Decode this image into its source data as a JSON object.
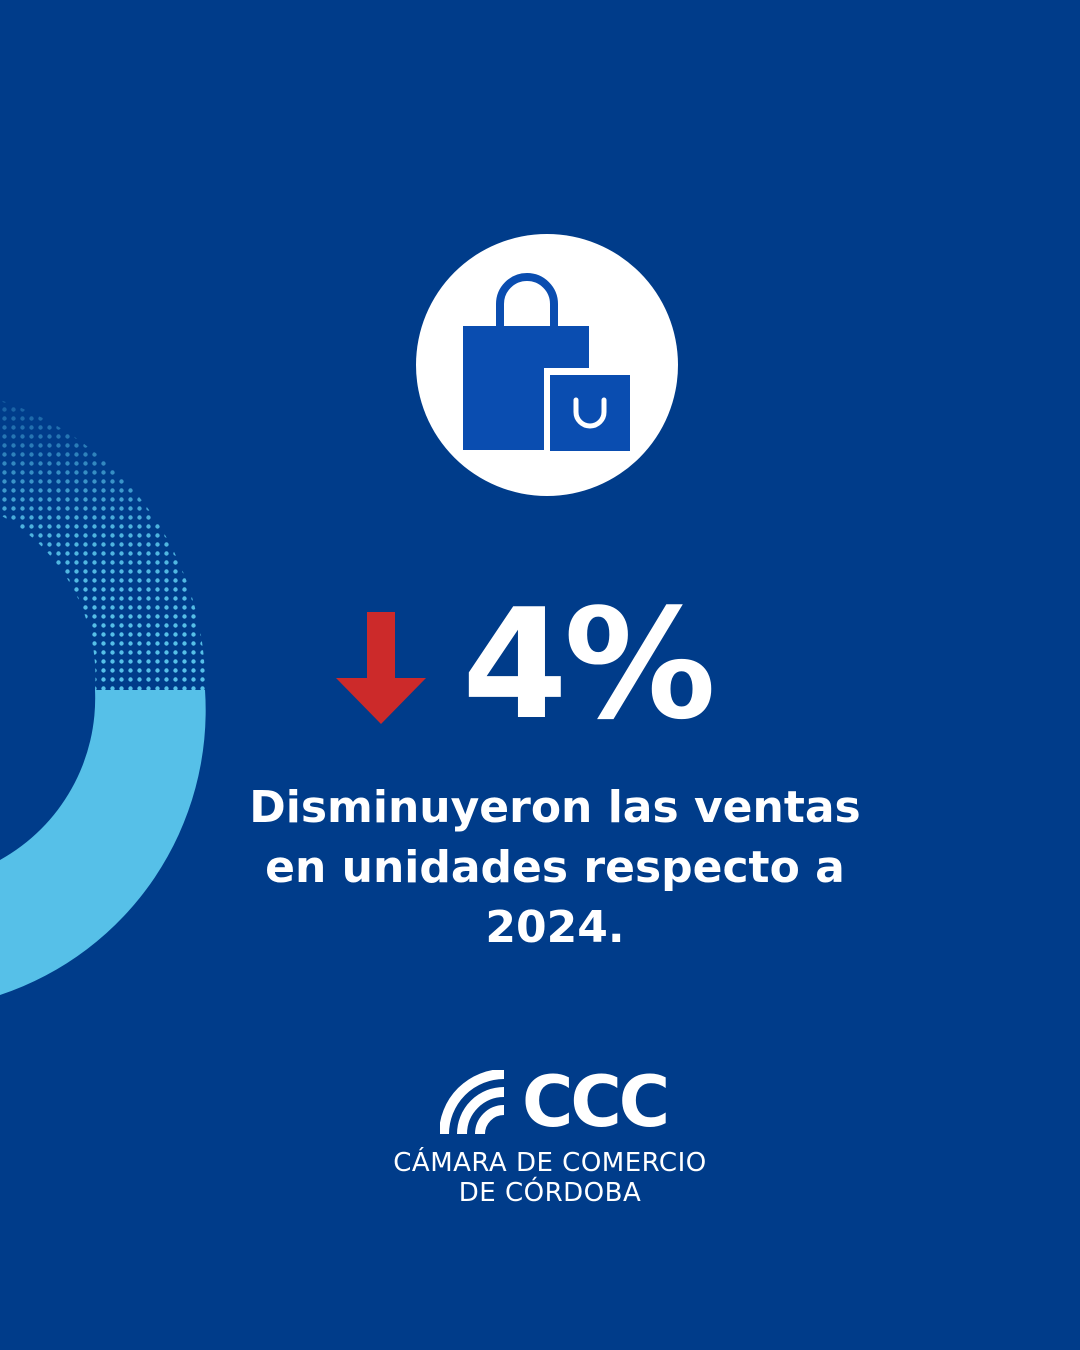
{
  "colors": {
    "background": "#003c8a",
    "accent_light_blue": "#56c0e8",
    "bag_blue": "#0a4db0",
    "arrow_red": "#cc2a2a",
    "text": "#ffffff"
  },
  "icon": {
    "name": "shopping-bags-icon"
  },
  "stat": {
    "direction_icon": "arrow-down-icon",
    "value": "4%"
  },
  "description": {
    "line1": "Disminuyeron las ventas",
    "line2": "en unidades respecto a",
    "line3": "2024."
  },
  "logo": {
    "mark_icon": "ccc-waves-icon",
    "letters": "CCC",
    "line1": "CÁMARA DE COMERCIO",
    "line2": "DE CÓRDOBA"
  }
}
